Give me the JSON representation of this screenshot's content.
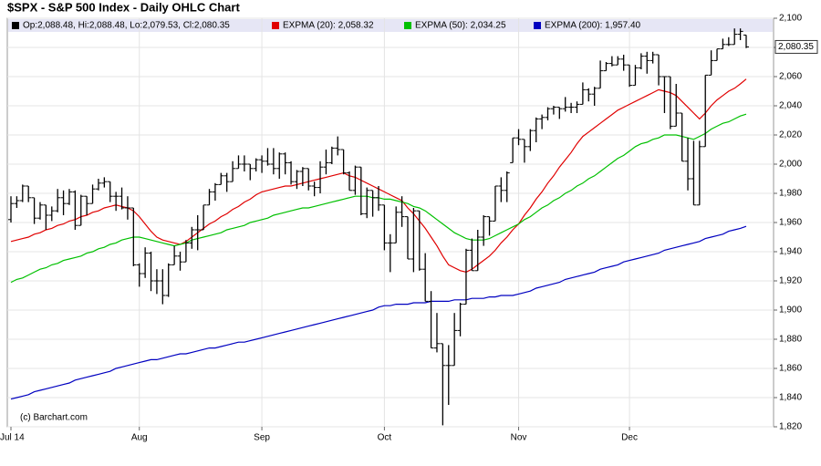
{
  "chart_data": {
    "type": "ohlc",
    "title": "$SPX - S&P 500 Index - Daily OHLC Chart",
    "ohlc_label": "Op:2,088.48, Hi:2,088.48, Lo:2,079.53, Cl:2,080.35",
    "copyright": "(c) Barchart.com",
    "bar_color": "#000000",
    "last_close": {
      "value": 2080.35,
      "label": "2,080.35"
    },
    "categories": [
      "Jul 14",
      null,
      null,
      null,
      null,
      null,
      null,
      null,
      null,
      null,
      null,
      null,
      null,
      null,
      null,
      null,
      null,
      null,
      null,
      null,
      null,
      null,
      "Aug",
      null,
      null,
      null,
      null,
      null,
      null,
      null,
      null,
      null,
      null,
      null,
      null,
      null,
      null,
      null,
      null,
      null,
      null,
      null,
      null,
      "Sep",
      null,
      null,
      null,
      null,
      null,
      null,
      null,
      null,
      null,
      null,
      null,
      null,
      null,
      null,
      null,
      null,
      null,
      null,
      null,
      null,
      "Oct",
      null,
      null,
      null,
      null,
      null,
      null,
      null,
      null,
      null,
      null,
      null,
      null,
      null,
      null,
      null,
      null,
      null,
      null,
      null,
      null,
      null,
      null,
      "Nov",
      null,
      null,
      null,
      null,
      null,
      null,
      null,
      null,
      null,
      null,
      null,
      null,
      null,
      null,
      null,
      null,
      null,
      null,
      "Dec",
      null,
      null,
      null,
      null,
      null,
      null,
      null,
      null,
      null,
      null,
      null,
      null,
      null,
      null,
      null,
      null,
      null,
      null,
      null,
      null
    ],
    "ohlc": [
      [
        1962,
        1978,
        1960,
        1973
      ],
      [
        1973,
        1978,
        1970,
        1975
      ],
      [
        1975,
        1986,
        1974,
        1985
      ],
      [
        1985,
        1985,
        1974,
        1977
      ],
      [
        1977,
        1977,
        1959,
        1963
      ],
      [
        1963,
        1974,
        1962,
        1972
      ],
      [
        1972,
        1972,
        1955,
        1965
      ],
      [
        1965,
        1971,
        1961,
        1968
      ],
      [
        1968,
        1983,
        1967,
        1977
      ],
      [
        1977,
        1982,
        1965,
        1973
      ],
      [
        1973,
        1983,
        1972,
        1981
      ],
      [
        1981,
        1982,
        1955,
        1958
      ],
      [
        1958,
        1979,
        1958,
        1978
      ],
      [
        1978,
        1978,
        1965,
        1973
      ],
      [
        1973,
        1986,
        1973,
        1983
      ],
      [
        1983,
        1990,
        1982,
        1987
      ],
      [
        1987,
        1991,
        1984,
        1988
      ],
      [
        1988,
        1988,
        1974,
        1978
      ],
      [
        1978,
        1981,
        1968,
        1978
      ],
      [
        1978,
        1984,
        1969,
        1970
      ],
      [
        1970,
        1978,
        1962,
        1970
      ],
      [
        1970,
        1970,
        1930,
        1931
      ],
      [
        1931,
        1932,
        1916,
        1925
      ],
      [
        1925,
        1943,
        1922,
        1939
      ],
      [
        1939,
        1940,
        1913,
        1920
      ],
      [
        1920,
        1928,
        1911,
        1920
      ],
      [
        1920,
        1928,
        1904,
        1910
      ],
      [
        1910,
        1932,
        1909,
        1931
      ],
      [
        1931,
        1944,
        1931,
        1937
      ],
      [
        1937,
        1940,
        1927,
        1933
      ],
      [
        1933,
        1948,
        1933,
        1946
      ],
      [
        1946,
        1957,
        1942,
        1955
      ],
      [
        1955,
        1965,
        1941,
        1955
      ],
      [
        1955,
        1972,
        1955,
        1972
      ],
      [
        1972,
        1983,
        1972,
        1981
      ],
      [
        1981,
        1987,
        1975,
        1986
      ],
      [
        1986,
        1994,
        1986,
        1992
      ],
      [
        1992,
        1994,
        1981,
        1988
      ],
      [
        1988,
        2002,
        1988,
        1997
      ],
      [
        1997,
        2006,
        1997,
        2000
      ],
      [
        2000,
        2006,
        1995,
        2000
      ],
      [
        2000,
        2000,
        1989,
        1997
      ],
      [
        1997,
        2004,
        1995,
        2003
      ],
      [
        2003,
        2006,
        1994,
        2002
      ],
      [
        2002,
        2011,
        1999,
        2000
      ],
      [
        2000,
        2011,
        1993,
        1997
      ],
      [
        1997,
        2008,
        1990,
        2007
      ],
      [
        2007,
        2008,
        1993,
        2001
      ],
      [
        2001,
        2002,
        1986,
        1988
      ],
      [
        1988,
        1996,
        1983,
        1995
      ],
      [
        1995,
        1998,
        1985,
        1997
      ],
      [
        1997,
        1997,
        1982,
        1985
      ],
      [
        1985,
        1988,
        1978,
        1984
      ],
      [
        1984,
        2002,
        1980,
        1998
      ],
      [
        1998,
        2010,
        1993,
        2001
      ],
      [
        2001,
        2012,
        2000,
        2011
      ],
      [
        2011,
        2019,
        2006,
        2010
      ],
      [
        2010,
        2010,
        1993,
        1994
      ],
      [
        1994,
        1995,
        1982,
        1982
      ],
      [
        1982,
        1999,
        1979,
        1998
      ],
      [
        1998,
        1998,
        1965,
        1966
      ],
      [
        1966,
        1984,
        1963,
        1982
      ],
      [
        1982,
        1982,
        1964,
        1977
      ],
      [
        1977,
        1985,
        1968,
        1972
      ],
      [
        1972,
        1972,
        1941,
        1946
      ],
      [
        1946,
        1952,
        1926,
        1946
      ],
      [
        1946,
        1971,
        1946,
        1967
      ],
      [
        1967,
        1978,
        1957,
        1964
      ],
      [
        1964,
        1964,
        1935,
        1935
      ],
      [
        1935,
        1970,
        1926,
        1968
      ],
      [
        1968,
        1968,
        1927,
        1928
      ],
      [
        1928,
        1939,
        1906,
        1906
      ],
      [
        1906,
        1913,
        1874,
        1874
      ],
      [
        1874,
        1898,
        1871,
        1877
      ],
      [
        1877,
        1877,
        1821,
        1862
      ],
      [
        1862,
        1876,
        1835,
        1862
      ],
      [
        1862,
        1898,
        1862,
        1886
      ],
      [
        1886,
        1905,
        1882,
        1904
      ],
      [
        1904,
        1942,
        1904,
        1941
      ],
      [
        1941,
        1949,
        1927,
        1927
      ],
      [
        1927,
        1955,
        1927,
        1950
      ],
      [
        1950,
        1965,
        1944,
        1964
      ],
      [
        1964,
        1964,
        1951,
        1961
      ],
      [
        1961,
        1985,
        1961,
        1985
      ],
      [
        1985,
        1991,
        1974,
        1982
      ],
      [
        1982,
        1995,
        1974,
        1994
      ],
      [
        2001,
        2018,
        2001,
        2018
      ],
      [
        2018,
        2024,
        2013,
        2017
      ],
      [
        2017,
        2017,
        2001,
        2012
      ],
      [
        2012,
        2024,
        2009,
        2023
      ],
      [
        2023,
        2032,
        2015,
        2031
      ],
      [
        2031,
        2034,
        2024,
        2032
      ],
      [
        2032,
        2039,
        2030,
        2038
      ],
      [
        2038,
        2040,
        2034,
        2039
      ],
      [
        2039,
        2039,
        2031,
        2038
      ],
      [
        2038,
        2046,
        2036,
        2039
      ],
      [
        2039,
        2042,
        2035,
        2039
      ],
      [
        2039,
        2043,
        2035,
        2041
      ],
      [
        2041,
        2056,
        2041,
        2051
      ],
      [
        2051,
        2052,
        2043,
        2048
      ],
      [
        2048,
        2053,
        2040,
        2052
      ],
      [
        2052,
        2071,
        2052,
        2064
      ],
      [
        2064,
        2070,
        2064,
        2069
      ],
      [
        2069,
        2074,
        2067,
        2068
      ],
      [
        2068,
        2074,
        2068,
        2072
      ],
      [
        2072,
        2075,
        2064,
        2068
      ],
      [
        2068,
        2068,
        2053,
        2054
      ],
      [
        2054,
        2068,
        2054,
        2066
      ],
      [
        2066,
        2076,
        2065,
        2074
      ],
      [
        2074,
        2077,
        2062,
        2071
      ],
      [
        2071,
        2077,
        2069,
        2075
      ],
      [
        2075,
        2075,
        2054,
        2060
      ],
      [
        2060,
        2060,
        2035,
        2060
      ],
      [
        2060,
        2060,
        2024,
        2026
      ],
      [
        2026,
        2055,
        2026,
        2035
      ],
      [
        2035,
        2035,
        2002,
        2002
      ],
      [
        2002,
        2018,
        1982,
        1990
      ],
      [
        1990,
        2016,
        1972,
        1972
      ],
      [
        1972,
        2016,
        1972,
        2012
      ],
      [
        2012,
        2061,
        2012,
        2061
      ],
      [
        2061,
        2078,
        2061,
        2071
      ],
      [
        2071,
        2079,
        2071,
        2079
      ],
      [
        2079,
        2086,
        2079,
        2082
      ],
      [
        2082,
        2087,
        2081,
        2082
      ],
      [
        2082,
        2093,
        2082,
        2089
      ],
      [
        2089,
        2093,
        2085,
        2091
      ],
      [
        2088.48,
        2088.48,
        2079.53,
        2080.35
      ]
    ],
    "series": [
      {
        "name": "EXPMA (20): 2,058.32",
        "color": "#e00000",
        "values": [
          1947,
          1948,
          1949,
          1950,
          1952,
          1953,
          1955,
          1956,
          1958,
          1959,
          1961,
          1962,
          1964,
          1965,
          1967,
          1968,
          1970,
          1971,
          1972,
          1971,
          1970,
          1968,
          1964,
          1959,
          1954,
          1950,
          1948,
          1947,
          1946,
          1945,
          1947,
          1950,
          1953,
          1956,
          1959,
          1961,
          1964,
          1966,
          1969,
          1971,
          1974,
          1976,
          1979,
          1981,
          1982,
          1983,
          1984,
          1985,
          1985,
          1986,
          1987,
          1988,
          1989,
          1990,
          1991,
          1992,
          1993,
          1994,
          1992,
          1991,
          1989,
          1987,
          1985,
          1983,
          1981,
          1979,
          1977,
          1975,
          1970,
          1966,
          1961,
          1956,
          1950,
          1944,
          1937,
          1931,
          1929,
          1927,
          1926,
          1928,
          1931,
          1934,
          1937,
          1941,
          1946,
          1950,
          1955,
          1959,
          1965,
          1970,
          1976,
          1981,
          1987,
          1992,
          1998,
          2003,
          2008,
          2014,
          2019,
          2022,
          2025,
          2028,
          2031,
          2034,
          2037,
          2039,
          2041,
          2043,
          2045,
          2047,
          2049,
          2051,
          2050,
          2049,
          2047,
          2043,
          2039,
          2035,
          2031,
          2035,
          2040,
          2044,
          2047,
          2050,
          2052,
          2055,
          2058.32
        ]
      },
      {
        "name": "EXPMA (50): 2,034.25",
        "color": "#00c000",
        "values": [
          1919,
          1921,
          1922,
          1924,
          1926,
          1928,
          1929,
          1931,
          1932,
          1934,
          1935,
          1936,
          1937,
          1939,
          1940,
          1942,
          1943,
          1945,
          1946,
          1948,
          1949,
          1950,
          1950,
          1949,
          1948,
          1947,
          1946,
          1945,
          1944,
          1945,
          1946,
          1948,
          1949,
          1950,
          1951,
          1952,
          1953,
          1955,
          1956,
          1957,
          1958,
          1960,
          1961,
          1962,
          1963,
          1965,
          1966,
          1967,
          1968,
          1969,
          1970,
          1970,
          1971,
          1972,
          1973,
          1974,
          1975,
          1976,
          1977,
          1978,
          1978,
          1978,
          1977,
          1977,
          1976,
          1976,
          1975,
          1974,
          1973,
          1971,
          1970,
          1968,
          1965,
          1962,
          1959,
          1956,
          1953,
          1951,
          1949,
          1948,
          1948,
          1948,
          1949,
          1951,
          1953,
          1955,
          1957,
          1959,
          1962,
          1964,
          1967,
          1970,
          1972,
          1975,
          1977,
          1980,
          1982,
          1985,
          1987,
          1990,
          1992,
          1995,
          1998,
          2001,
          2004,
          2006,
          2009,
          2012,
          2014,
          2015,
          2017,
          2018,
          2020,
          2020,
          2020,
          2019,
          2018,
          2017,
          2019,
          2021,
          2024,
          2026,
          2028,
          2029,
          2031,
          2033,
          2034.25
        ]
      },
      {
        "name": "EXPMA (200): 1,957.40",
        "color": "#0000c0",
        "values": [
          1839,
          1840,
          1841,
          1842,
          1844,
          1845,
          1846,
          1847,
          1848,
          1849,
          1850,
          1852,
          1853,
          1854,
          1855,
          1856,
          1857,
          1858,
          1860,
          1861,
          1862,
          1863,
          1864,
          1865,
          1866,
          1866,
          1867,
          1868,
          1869,
          1870,
          1870,
          1871,
          1872,
          1873,
          1874,
          1874,
          1875,
          1876,
          1877,
          1878,
          1878,
          1879,
          1880,
          1881,
          1882,
          1883,
          1884,
          1885,
          1886,
          1887,
          1888,
          1889,
          1890,
          1891,
          1892,
          1893,
          1894,
          1895,
          1896,
          1897,
          1898,
          1899,
          1900,
          1902,
          1903,
          1903,
          1904,
          1904,
          1904,
          1905,
          1905,
          1905,
          1906,
          1906,
          1906,
          1906,
          1907,
          1907,
          1907,
          1908,
          1908,
          1908,
          1909,
          1909,
          1910,
          1910,
          1910,
          1911,
          1912,
          1913,
          1915,
          1916,
          1917,
          1918,
          1919,
          1921,
          1922,
          1923,
          1924,
          1925,
          1926,
          1928,
          1929,
          1930,
          1931,
          1933,
          1934,
          1935,
          1936,
          1937,
          1938,
          1939,
          1941,
          1942,
          1943,
          1944,
          1945,
          1946,
          1947,
          1949,
          1950,
          1951,
          1952,
          1954,
          1955,
          1956,
          1957.4
        ]
      }
    ],
    "ylim": [
      1820,
      2100
    ],
    "yticks": [
      {
        "value": 1820,
        "label": "1,820"
      },
      {
        "value": 1840,
        "label": "1,840"
      },
      {
        "value": 1860,
        "label": "1,860"
      },
      {
        "value": 1880,
        "label": "1,880"
      },
      {
        "value": 1900,
        "label": "1,900"
      },
      {
        "value": 1920,
        "label": "1,920"
      },
      {
        "value": 1940,
        "label": "1,940"
      },
      {
        "value": 1960,
        "label": "1,960"
      },
      {
        "value": 1980,
        "label": "1,980"
      },
      {
        "value": 2000,
        "label": "2,000"
      },
      {
        "value": 2020,
        "label": "2,020"
      },
      {
        "value": 2040,
        "label": "2,040"
      },
      {
        "value": 2060,
        "label": "2,060"
      },
      {
        "value": 2080,
        "label": "2,080"
      },
      {
        "value": 2100,
        "label": "2,100"
      }
    ],
    "grid": true
  }
}
